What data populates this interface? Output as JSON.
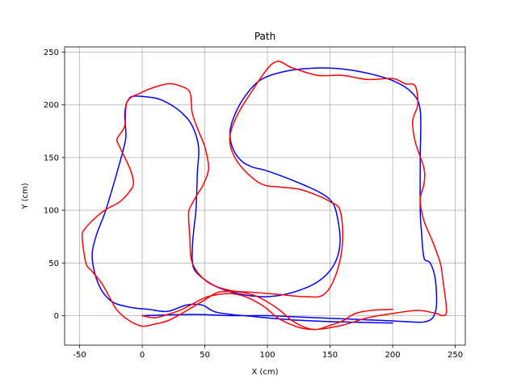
{
  "chart_data": {
    "type": "line",
    "title": "Path",
    "xlabel": "X (cm)",
    "ylabel": "Y (cm)",
    "xlim": [
      -62,
      258
    ],
    "ylim": [
      -28,
      255
    ],
    "xticks": [
      -50,
      0,
      50,
      100,
      150,
      200,
      250
    ],
    "yticks": [
      0,
      50,
      100,
      150,
      200,
      250
    ],
    "grid": true,
    "series": [
      {
        "color": "#0000ff",
        "x": [
          200,
          160,
          120,
          90,
          60,
          48,
          35,
          20,
          5,
          -10,
          -25,
          -35,
          -40,
          -37,
          -30,
          -24,
          -18,
          -14,
          -13,
          -14,
          -13,
          -11,
          -8,
          0,
          12,
          23,
          32,
          40,
          45,
          44,
          43,
          41,
          40,
          40,
          42,
          50,
          62,
          80,
          100,
          120,
          140,
          153,
          158,
          155,
          150,
          140,
          125,
          110,
          98,
          88,
          80,
          73,
          70,
          73,
          82,
          95,
          115,
          140,
          160,
          180,
          200,
          215,
          222,
          222,
          222,
          223,
          225,
          230,
          234,
          235,
          232,
          225,
          215,
          200,
          180,
          160,
          140,
          120,
          100,
          70,
          50,
          30,
          0
        ],
        "y": [
          -7,
          -6,
          -4,
          -1,
          3,
          10,
          10,
          4,
          6,
          8,
          14,
          30,
          55,
          75,
          97,
          120,
          145,
          163,
          172,
          190,
          200,
          205,
          208,
          208,
          206,
          200,
          192,
          180,
          160,
          135,
          102,
          80,
          65,
          52,
          43,
          34,
          26,
          20,
          18,
          22,
          32,
          48,
          70,
          98,
          110,
          118,
          126,
          133,
          138,
          141,
          146,
          157,
          172,
          188,
          208,
          224,
          232,
          235,
          234,
          230,
          223,
          212,
          195,
          150,
          100,
          80,
          55,
          50,
          35,
          10,
          -2,
          -6,
          -6,
          -5,
          -4,
          -3,
          -2,
          -1,
          0,
          0,
          1,
          1,
          0
        ]
      },
      {
        "color": "#ff0000",
        "x": [
          200,
          183,
          170,
          160,
          148,
          140,
          132,
          120,
          110,
          100,
          90,
          80,
          70,
          60,
          50,
          40,
          30,
          20,
          10,
          0,
          -10,
          -20,
          -25,
          -32,
          -40,
          -45,
          -48,
          -46,
          -40,
          -30,
          -18,
          -10,
          -7,
          -10,
          -18,
          -20,
          -14,
          -12,
          0,
          13,
          22,
          30,
          38,
          40,
          45,
          50,
          53,
          49,
          44,
          38,
          37,
          38,
          40,
          52,
          70,
          90,
          110,
          130,
          145,
          155,
          160,
          158,
          150,
          140,
          125,
          110,
          95,
          80,
          72,
          70,
          75,
          86,
          105,
          120,
          140,
          160,
          180,
          200,
          210,
          218,
          220,
          216,
          218,
          225,
          225,
          222,
          225,
          232,
          238,
          240,
          243,
          240,
          235,
          220,
          200,
          180,
          160,
          140,
          128,
          118,
          108,
          98,
          88,
          80,
          70,
          60,
          50,
          40,
          30,
          20,
          10,
          0
        ],
        "y": [
          6,
          5,
          2,
          -5,
          -10,
          -13,
          -12,
          -5,
          5,
          13,
          19,
          22,
          23,
          22,
          15,
          8,
          1,
          -5,
          -8,
          -10,
          -5,
          5,
          15,
          30,
          42,
          50,
          75,
          82,
          90,
          100,
          108,
          118,
          126,
          140,
          160,
          168,
          180,
          203,
          212,
          218,
          220,
          218,
          212,
          192,
          175,
          160,
          140,
          125,
          115,
          102,
          95,
          75,
          50,
          32,
          24,
          22,
          20,
          18,
          20,
          40,
          70,
          100,
          108,
          114,
          120,
          122,
          125,
          140,
          155,
          170,
          188,
          210,
          240,
          235,
          228,
          228,
          224,
          225,
          220,
          218,
          200,
          185,
          165,
          140,
          125,
          110,
          90,
          70,
          50,
          35,
          5,
          0,
          2,
          5,
          2,
          -2,
          -9,
          -13,
          -12,
          -8,
          -2,
          8,
          15,
          19,
          21,
          20,
          17,
          11,
          5,
          1,
          -2,
          0
        ]
      }
    ]
  }
}
